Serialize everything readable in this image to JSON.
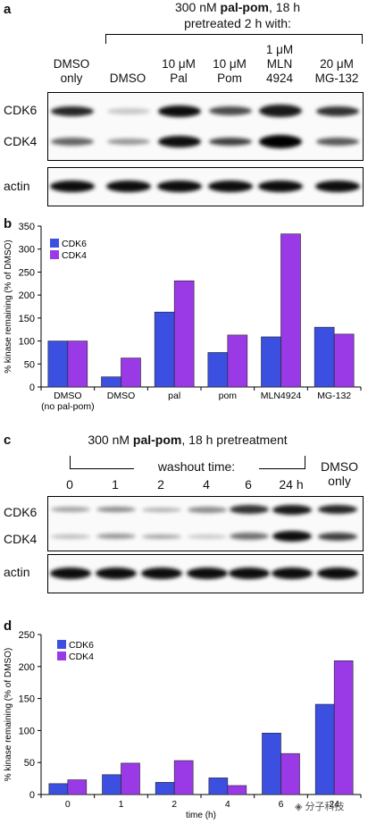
{
  "panels": {
    "a": {
      "letter": "a",
      "title_pre": "300 nM ",
      "title_bold": "pal-pom",
      "title_post": ", 18 h",
      "subtitle": "pretreated 2 h with:",
      "lanes": [
        [
          "DMSO",
          "only"
        ],
        [
          "DMSO"
        ],
        [
          "10 μM",
          "Pal"
        ],
        [
          "10 μM",
          "Pom"
        ],
        [
          "1 μM",
          "MLN",
          "4924"
        ],
        [
          "20 μM",
          "MG-132"
        ]
      ],
      "rows": [
        "CDK6",
        "CDK4",
        "actin"
      ]
    },
    "c": {
      "letter": "c",
      "title_pre": "300 nM ",
      "title_bold": "pal-pom",
      "title_post": ", 18 h pretreatment",
      "subtitle": "washout time:",
      "lanes": [
        "0",
        "1",
        "2",
        "4",
        "6",
        "24 h"
      ],
      "dmso_only": [
        "DMSO",
        "only"
      ],
      "rows": [
        "CDK6",
        "CDK4",
        "actin"
      ]
    }
  },
  "colors": {
    "cdk6": "#3b4fe0",
    "cdk4": "#9a3ae6"
  },
  "chart_data": [
    {
      "panel": "b",
      "type": "bar",
      "categories": [
        [
          "DMSO",
          "(no pal-pom)"
        ],
        [
          "DMSO"
        ],
        [
          "pal"
        ],
        [
          "pom"
        ],
        [
          "MLN4924"
        ],
        [
          "MG-132"
        ]
      ],
      "series": [
        {
          "name": "CDK6",
          "values": [
            100,
            22,
            163,
            75,
            109,
            130
          ]
        },
        {
          "name": "CDK4",
          "values": [
            100,
            63,
            231,
            113,
            333,
            115
          ]
        }
      ],
      "ylabel": "% kinase remaining (% of DMSO)",
      "xlabel": "",
      "ylim": [
        0,
        350
      ],
      "yticks": [
        0,
        50,
        100,
        150,
        200,
        250,
        300,
        350
      ],
      "legend": "top-left"
    },
    {
      "panel": "d",
      "type": "bar",
      "categories": [
        [
          "0"
        ],
        [
          "1"
        ],
        [
          "2"
        ],
        [
          "4"
        ],
        [
          "6"
        ],
        [
          "24"
        ]
      ],
      "series": [
        {
          "name": "CDK6",
          "values": [
            17,
            31,
            19,
            26,
            96,
            141
          ]
        },
        {
          "name": "CDK4",
          "values": [
            23,
            49,
            53,
            14,
            64,
            209
          ]
        }
      ],
      "ylabel": "% kinase remaining (% of DMSO)",
      "xlabel": "time (h)",
      "ylim": [
        0,
        250
      ],
      "yticks": [
        0,
        50,
        100,
        150,
        200,
        250
      ],
      "legend": "top-left"
    }
  ],
  "watermark": "分子科技"
}
